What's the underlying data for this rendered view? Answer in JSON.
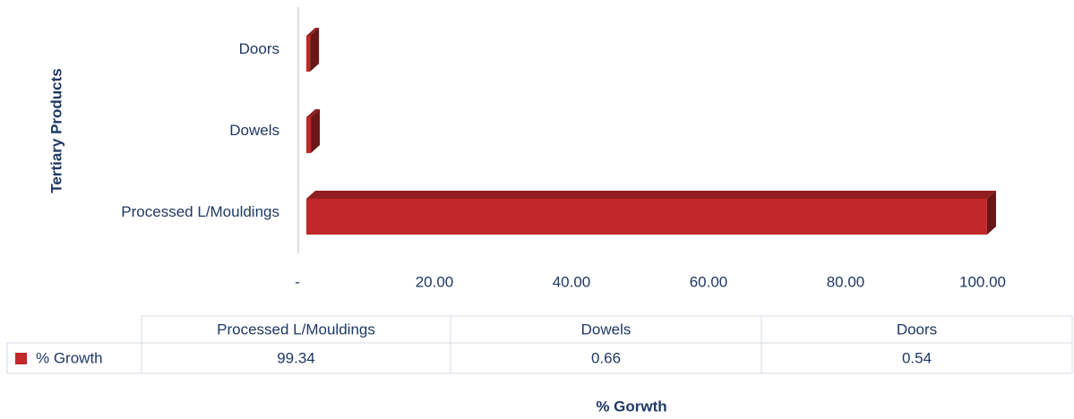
{
  "chart_data": {
    "type": "bar",
    "orientation": "horizontal",
    "y_label": "Tertiary Products",
    "x_label": "% Gorwth",
    "categories": [
      "Processed L/Mouldings",
      "Dowels",
      "Doors"
    ],
    "series": [
      {
        "name": "% Growth",
        "color": "#c0282a",
        "values": [
          99.34,
          0.66,
          0.54
        ]
      }
    ],
    "xlim": [
      0,
      100
    ],
    "xticks": [
      {
        "value": 0,
        "label": "-"
      },
      {
        "value": 20,
        "label": "20.00"
      },
      {
        "value": 40,
        "label": "40.00"
      },
      {
        "value": 60,
        "label": "60.00"
      },
      {
        "value": 80,
        "label": "80.00"
      },
      {
        "value": 100,
        "label": "100.00"
      }
    ],
    "data_table": true
  }
}
